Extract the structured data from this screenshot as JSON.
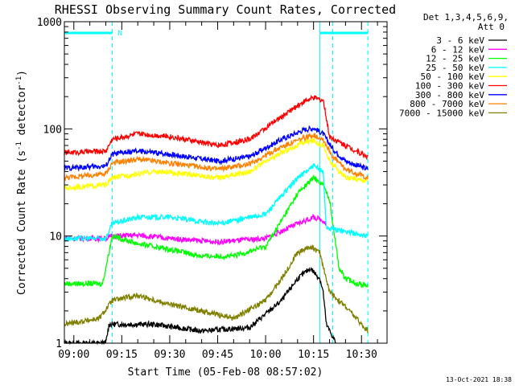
{
  "chart_data": {
    "type": "line",
    "title": "RHESSI Observing Summary Count Rates, Corrected",
    "xlabel": "Start Time (05-Feb-08 08:57:02)",
    "ylabel": "Corrected Count Rate (s",
    "ylabel_sup1": "-1",
    "ylabel_mid": " detector",
    "ylabel_sup2": "-1",
    "ylabel_end": ")",
    "yscale": "log",
    "ylim": [
      1,
      1000
    ],
    "xlim": [
      "08:57:02",
      "10:38:00"
    ],
    "x_ticks": [
      "09:00",
      "09:15",
      "09:30",
      "09:45",
      "10:00",
      "10:15",
      "10:30"
    ],
    "y_ticks": [
      {
        "value": 1,
        "label": "1"
      },
      {
        "value": 10,
        "label": "10"
      },
      {
        "value": 100,
        "label": "100"
      },
      {
        "value": 1000,
        "label": "1000"
      }
    ],
    "legend_header": [
      "Det 1,3,4,5,6,9,",
      "Att 0"
    ],
    "legend_position": "right",
    "grid": false,
    "series": [
      {
        "name": "3 - 6 keV",
        "color": "#000000",
        "x": [
          "08:57",
          "09:10",
          "09:11",
          "09:25",
          "09:40",
          "09:55",
          "10:05",
          "10:10",
          "10:14",
          "10:17",
          "10:18",
          "10:19",
          "10:22"
        ],
        "values": [
          1,
          1,
          1.5,
          1.5,
          1.3,
          1.4,
          2.5,
          4,
          5,
          4,
          3,
          1.5,
          1
        ]
      },
      {
        "name": "6 - 12 keV",
        "color": "#ff00ff",
        "x": [
          "08:57",
          "09:10",
          "09:12",
          "09:20",
          "09:30",
          "09:45",
          "10:00",
          "10:10",
          "10:15",
          "10:18",
          "10:19"
        ],
        "values": [
          9.5,
          9.5,
          10,
          10.2,
          9.5,
          8.8,
          9.5,
          13,
          15,
          14,
          13
        ]
      },
      {
        "name": "12 - 25 keV",
        "color": "#00ff00",
        "x": [
          "08:57",
          "09:09",
          "09:12",
          "09:20",
          "09:30",
          "09:40",
          "09:50",
          "10:00",
          "10:05",
          "10:10",
          "10:15",
          "10:18",
          "10:20",
          "10:23",
          "10:25",
          "10:30",
          "10:32"
        ],
        "values": [
          3.6,
          3.6,
          10,
          8.5,
          7.5,
          6.5,
          6.5,
          8,
          14,
          25,
          35,
          30,
          22,
          5,
          4,
          3.5,
          3.5
        ]
      },
      {
        "name": "25 - 50 keV",
        "color": "#00ffff",
        "x": [
          "08:57",
          "09:10",
          "09:12",
          "09:20",
          "09:30",
          "09:45",
          "10:00",
          "10:10",
          "10:15",
          "10:18",
          "10:19",
          "10:25",
          "10:32"
        ],
        "values": [
          9.5,
          9.5,
          13,
          15,
          15,
          13,
          16,
          35,
          45,
          40,
          12,
          11,
          10
        ]
      },
      {
        "name": "50 - 100 keV",
        "color": "#ffff00",
        "x": [
          "08:57",
          "09:10",
          "09:12",
          "09:25",
          "09:35",
          "09:45",
          "09:55",
          "10:05",
          "10:12",
          "10:15",
          "10:18",
          "10:20",
          "10:25",
          "10:32"
        ],
        "values": [
          28,
          30,
          35,
          40,
          38,
          35,
          40,
          60,
          75,
          78,
          70,
          50,
          35,
          33
        ]
      },
      {
        "name": "100 - 300 keV",
        "color": "#ff0000",
        "x": [
          "08:57",
          "09:10",
          "09:12",
          "09:20",
          "09:30",
          "09:45",
          "09:55",
          "10:05",
          "10:12",
          "10:15",
          "10:18",
          "10:20",
          "10:25",
          "10:32"
        ],
        "values": [
          60,
          62,
          80,
          90,
          85,
          70,
          80,
          130,
          180,
          195,
          185,
          85,
          70,
          55
        ]
      },
      {
        "name": "300 - 800 keV",
        "color": "#0000ff",
        "x": [
          "08:57",
          "09:10",
          "09:12",
          "09:20",
          "09:30",
          "09:45",
          "09:55",
          "10:05",
          "10:12",
          "10:15",
          "10:18",
          "10:21",
          "10:25",
          "10:32"
        ],
        "values": [
          43,
          45,
          58,
          62,
          58,
          50,
          55,
          80,
          98,
          102,
          90,
          65,
          50,
          42
        ]
      },
      {
        "name": "800 - 7000 keV",
        "color": "#ff8000",
        "x": [
          "08:57",
          "09:10",
          "09:12",
          "09:20",
          "09:30",
          "09:45",
          "09:55",
          "10:05",
          "10:12",
          "10:15",
          "10:18",
          "10:21",
          "10:25",
          "10:32"
        ],
        "values": [
          35,
          38,
          48,
          52,
          48,
          42,
          47,
          68,
          82,
          88,
          80,
          55,
          42,
          35
        ]
      },
      {
        "name": "7000 - 15000 keV",
        "color": "#808000",
        "x": [
          "08:57",
          "09:08",
          "09:12",
          "09:20",
          "09:30",
          "09:40",
          "09:50",
          "10:00",
          "10:05",
          "10:10",
          "10:14",
          "10:17",
          "10:20",
          "10:25",
          "10:30",
          "10:32"
        ],
        "values": [
          1.5,
          1.7,
          2.5,
          2.8,
          2.3,
          2,
          1.7,
          2.5,
          4,
          7,
          8,
          7,
          3,
          2.2,
          1.5,
          1.3
        ]
      }
    ],
    "attenuator_state_bars": [
      {
        "start": "08:57",
        "end": "09:12"
      },
      {
        "start": "10:17",
        "end": "10:32"
      }
    ],
    "vertical_markers_solid": [
      "10:17"
    ],
    "vertical_markers_dashed": [
      "09:12",
      "10:21",
      "10:32"
    ],
    "annotations": [
      {
        "text": "N",
        "at": "09:13"
      }
    ],
    "footer_date": "13-Oct-2021 18:38"
  }
}
